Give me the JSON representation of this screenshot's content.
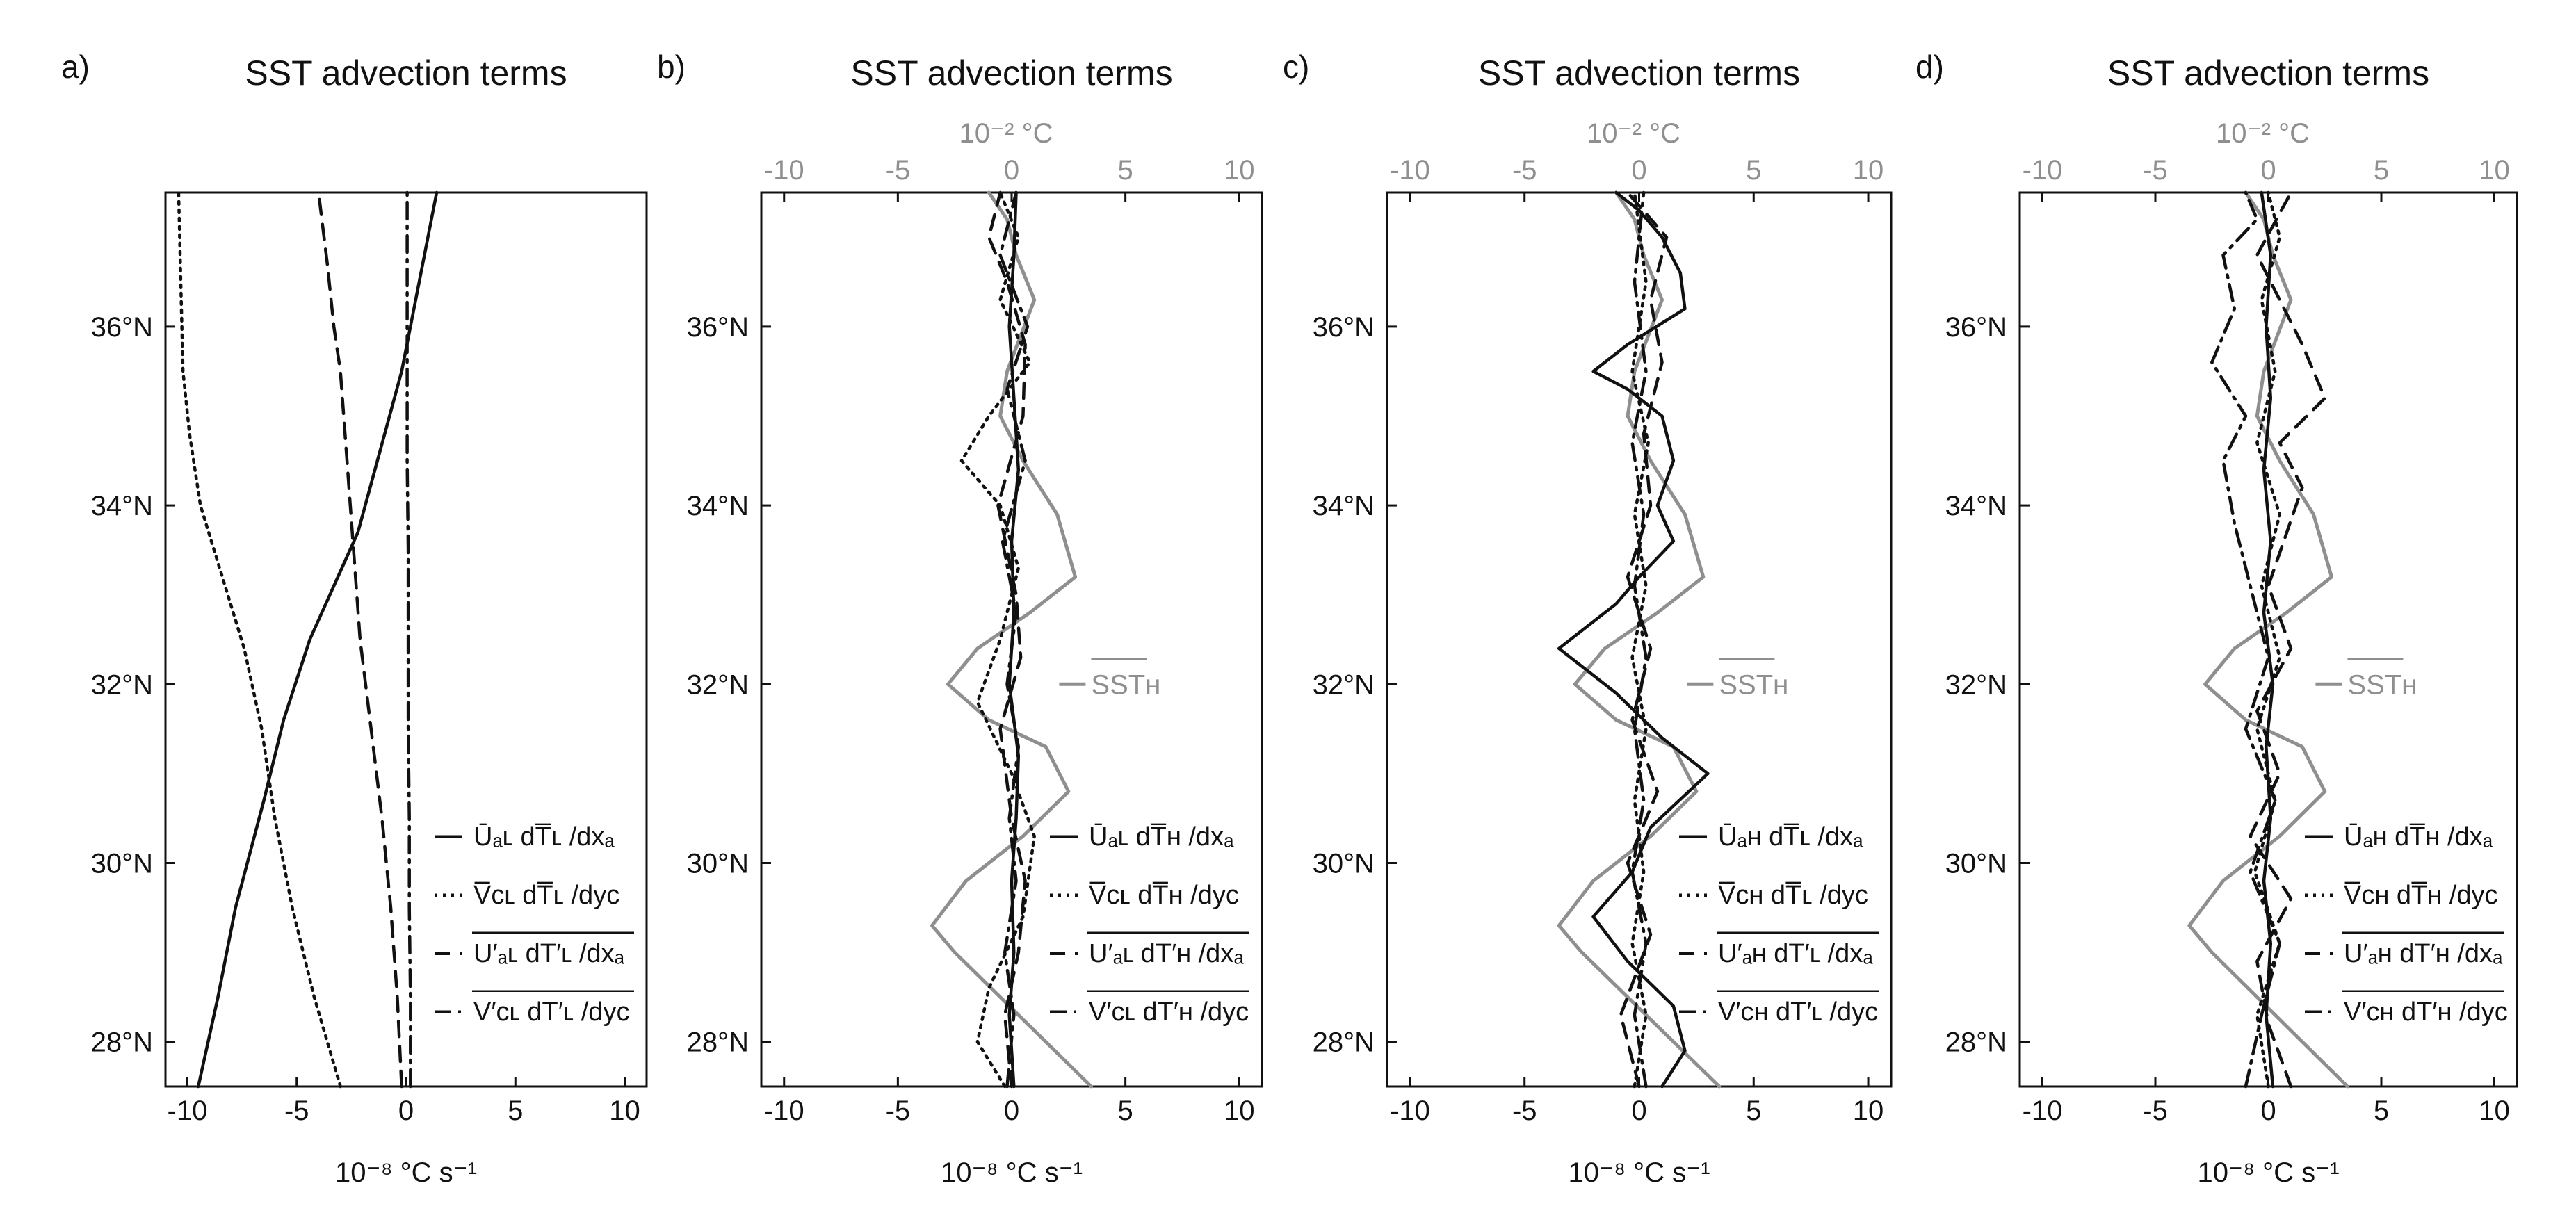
{
  "colors": {
    "black": "#111111",
    "gray": "#8f8f8f"
  },
  "panels": [
    {
      "id": "a",
      "label": "a)",
      "title": "SST advection terms",
      "xlabel": "10⁻⁸ °C s⁻¹",
      "bottom_ticks": [
        "-10",
        "-5",
        "0",
        "5",
        "10"
      ],
      "top_axis": false,
      "top_axis_label": "",
      "top_ticks": [],
      "y_ticks": [
        "36°N",
        "34°N",
        "32°N",
        "30°N",
        "28°N"
      ],
      "sst_label": "",
      "legend": [
        {
          "style": "solid",
          "text": "Ūₐʟ dT̅ʟ /dxₐ"
        },
        {
          "style": "dotted",
          "text": "V̅ᴄʟ dT̅ʟ /dyᴄ"
        },
        {
          "style": "dashed",
          "text": "U′ₐʟ dT′ʟ /dxₐ"
        },
        {
          "style": "dashdot",
          "text": "V′ᴄʟ dT′ʟ /dyᴄ"
        }
      ]
    },
    {
      "id": "b",
      "label": "b)",
      "title": "SST advection terms",
      "xlabel": "10⁻⁸ °C s⁻¹",
      "bottom_ticks": [
        "-10",
        "-5",
        "0",
        "5",
        "10"
      ],
      "top_axis": true,
      "top_axis_label": "10⁻² °C",
      "top_ticks": [
        "-10",
        "-5",
        "0",
        "5",
        "10"
      ],
      "y_ticks": [
        "36°N",
        "34°N",
        "32°N",
        "30°N",
        "28°N"
      ],
      "sst_label": "SSTʜ",
      "legend": [
        {
          "style": "solid",
          "text": "Ūₐʟ dT̅ʜ /dxₐ"
        },
        {
          "style": "dotted",
          "text": "V̅ᴄʟ dT̅ʜ /dyᴄ"
        },
        {
          "style": "dashed",
          "text": "U′ₐʟ dT′ʜ /dxₐ"
        },
        {
          "style": "dashdot",
          "text": "V′ᴄʟ dT′ʜ /dyᴄ"
        }
      ]
    },
    {
      "id": "c",
      "label": "c)",
      "title": "SST advection terms",
      "xlabel": "10⁻⁸ °C s⁻¹",
      "bottom_ticks": [
        "-10",
        "-5",
        "0",
        "5",
        "10"
      ],
      "top_axis": true,
      "top_axis_label": "10⁻² °C",
      "top_ticks": [
        "-10",
        "-5",
        "0",
        "5",
        "10"
      ],
      "y_ticks": [
        "36°N",
        "34°N",
        "32°N",
        "30°N",
        "28°N"
      ],
      "sst_label": "SSTʜ",
      "legend": [
        {
          "style": "solid",
          "text": "Ūₐʜ dT̅ʟ /dxₐ"
        },
        {
          "style": "dotted",
          "text": "V̅ᴄʜ dT̅ʟ /dyᴄ"
        },
        {
          "style": "dashed",
          "text": "U′ₐʜ dT′ʟ /dxₐ"
        },
        {
          "style": "dashdot",
          "text": "V′ᴄʜ dT′ʟ /dyᴄ"
        }
      ]
    },
    {
      "id": "d",
      "label": "d)",
      "title": "SST advection terms",
      "xlabel": "10⁻⁸ °C s⁻¹",
      "bottom_ticks": [
        "-10",
        "-5",
        "0",
        "5",
        "10"
      ],
      "top_axis": true,
      "top_axis_label": "10⁻² °C",
      "top_ticks": [
        "-10",
        "-5",
        "0",
        "5",
        "10"
      ],
      "y_ticks": [
        "36°N",
        "34°N",
        "32°N",
        "30°N",
        "28°N"
      ],
      "sst_label": "SSTʜ",
      "legend": [
        {
          "style": "solid",
          "text": "Ūₐʜ dT̅ʜ /dxₐ"
        },
        {
          "style": "dotted",
          "text": "V̅ᴄʜ dT̅ʜ /dyᴄ"
        },
        {
          "style": "dashed",
          "text": "U′ₐʜ dT′ʜ /dxₐ"
        },
        {
          "style": "dashdot",
          "text": "V′ᴄʜ dT′ʜ /dyᴄ"
        }
      ]
    }
  ],
  "chart_data": [
    {
      "panel": "a",
      "type": "line",
      "title": "SST advection terms",
      "xlabel": "10⁻⁸ °C s⁻¹",
      "xlim": [
        -11,
        11
      ],
      "ylim": [
        27.5,
        37.5
      ],
      "series": [
        {
          "name": "solid",
          "style": "solid",
          "color": "black",
          "x": [
            -9.5,
            -8.6,
            -7.8,
            -6.5,
            -5.6,
            -4.4,
            -3.3,
            -2.2,
            -1.2,
            -0.2,
            0.6,
            1.4
          ],
          "y": [
            27.5,
            28.5,
            29.5,
            30.7,
            31.6,
            32.5,
            33.1,
            33.7,
            34.6,
            35.5,
            36.5,
            37.5
          ]
        },
        {
          "name": "dotted",
          "style": "dotted",
          "color": "black",
          "x": [
            -3.0,
            -4.2,
            -5.2,
            -6.0,
            -6.6,
            -7.4,
            -8.4,
            -9.4,
            -9.9,
            -10.2,
            -10.3,
            -10.4
          ],
          "y": [
            27.5,
            28.5,
            29.5,
            30.5,
            31.5,
            32.4,
            33.2,
            34.0,
            34.8,
            35.5,
            36.5,
            37.5
          ]
        },
        {
          "name": "dashed",
          "style": "dashed",
          "color": "black",
          "x": [
            -0.2,
            -0.4,
            -0.7,
            -1.1,
            -1.6,
            -2.1,
            -2.4,
            -2.7,
            -3.0,
            -3.3,
            -3.6,
            -4.0
          ],
          "y": [
            27.5,
            28.5,
            29.5,
            30.5,
            31.5,
            32.5,
            33.5,
            34.5,
            35.5,
            36.0,
            36.7,
            37.5
          ]
        },
        {
          "name": "dashdot",
          "style": "dashdot",
          "color": "black",
          "x": [
            0.2,
            0.2,
            0.15,
            0.15,
            0.1,
            0.1,
            0.1,
            0.05,
            0.05,
            0.05
          ],
          "y": [
            27.5,
            28.5,
            29.5,
            30.5,
            31.5,
            32.5,
            33.5,
            34.5,
            35.5,
            37.5
          ]
        }
      ]
    },
    {
      "panel": "b",
      "type": "line",
      "title": "SST advection terms",
      "xlabel": "10⁻⁸ °C s⁻¹",
      "top_xlabel": "10⁻² °C",
      "xlim": [
        -11,
        11
      ],
      "ylim": [
        27.5,
        37.5
      ],
      "series": [
        {
          "name": "SST_H",
          "style": "solid",
          "color": "gray",
          "x": [
            3.5,
            1.5,
            -0.5,
            -2.5,
            -3.5,
            -2.0,
            0.5,
            2.5,
            1.5,
            -1.0,
            -2.8,
            -1.5,
            0.8,
            2.8,
            2.0,
            0.5,
            -0.5,
            -0.2,
            1.0,
            0.2,
            -0.2,
            -1.0
          ],
          "y": [
            27.5,
            28.0,
            28.5,
            29.0,
            29.3,
            29.8,
            30.3,
            30.8,
            31.3,
            31.6,
            32.0,
            32.4,
            32.8,
            33.2,
            33.9,
            34.5,
            35.0,
            35.5,
            36.3,
            36.8,
            37.2,
            37.5
          ]
        },
        {
          "name": "solid",
          "style": "solid",
          "color": "black",
          "x": [
            0.1,
            -0.1,
            0.1,
            0.0,
            0.2,
            0.3,
            -0.1,
            0.1,
            0.0,
            0.3,
            0.1,
            -0.1,
            0.1,
            0.2
          ],
          "y": [
            27.5,
            28.3,
            29.0,
            29.8,
            30.5,
            31.2,
            32.0,
            32.8,
            33.6,
            34.4,
            35.2,
            36.0,
            36.8,
            37.5
          ]
        },
        {
          "name": "dotted",
          "style": "dotted",
          "color": "black",
          "x": [
            -0.3,
            -1.5,
            -1.0,
            0.5,
            1.0,
            0.0,
            -1.5,
            -0.5,
            0.3,
            -0.5,
            -2.2,
            -1.0,
            0.8,
            -0.5,
            0.3,
            -0.5
          ],
          "y": [
            27.5,
            28.0,
            28.6,
            29.4,
            30.3,
            31.0,
            31.8,
            32.5,
            33.3,
            34.0,
            34.5,
            35.0,
            35.6,
            36.3,
            37.0,
            37.5
          ]
        },
        {
          "name": "dashed",
          "style": "dashed",
          "color": "black",
          "x": [
            0.0,
            -0.3,
            0.3,
            0.6,
            0.0,
            -0.5,
            0.4,
            0.2,
            -0.6,
            0.5,
            0.6,
            -0.2,
            -1.0,
            -0.5
          ],
          "y": [
            27.5,
            28.3,
            29.0,
            29.8,
            30.5,
            31.5,
            32.3,
            33.0,
            34.0,
            35.0,
            35.8,
            36.5,
            37.0,
            37.5
          ]
        },
        {
          "name": "dashdot",
          "style": "dashdot",
          "color": "black",
          "x": [
            -0.2,
            0.1,
            -0.3,
            0.2,
            -0.1,
            0.3,
            -0.2,
            0.2,
            -0.4,
            0.6,
            -0.2,
            0.7,
            -0.5,
            0.2
          ],
          "y": [
            27.5,
            28.3,
            29.0,
            29.8,
            30.5,
            31.3,
            32.0,
            32.8,
            33.6,
            34.5,
            35.3,
            36.0,
            36.8,
            37.5
          ]
        }
      ]
    },
    {
      "panel": "c",
      "type": "line",
      "title": "SST advection terms",
      "xlabel": "10⁻⁸ °C s⁻¹",
      "top_xlabel": "10⁻² °C",
      "xlim": [
        -11,
        11
      ],
      "ylim": [
        27.5,
        37.5
      ],
      "series": [
        {
          "name": "SST_H",
          "style": "solid",
          "color": "gray",
          "x": [
            3.5,
            1.5,
            -0.5,
            -2.5,
            -3.5,
            -2.0,
            0.5,
            2.5,
            1.5,
            -1.0,
            -2.8,
            -1.5,
            0.8,
            2.8,
            2.0,
            0.5,
            -0.5,
            -0.2,
            1.0,
            0.2,
            -0.2,
            -1.0
          ],
          "y": [
            27.5,
            28.0,
            28.5,
            29.0,
            29.3,
            29.8,
            30.3,
            30.8,
            31.3,
            31.6,
            32.0,
            32.4,
            32.8,
            33.2,
            33.9,
            34.5,
            35.0,
            35.5,
            36.3,
            36.8,
            37.2,
            37.5
          ]
        },
        {
          "name": "solid",
          "style": "solid",
          "color": "black",
          "x": [
            1.0,
            2.0,
            1.5,
            -0.5,
            -2.0,
            -0.3,
            0.5,
            3.0,
            1.0,
            -1.0,
            -3.5,
            -1.0,
            0.0,
            1.5,
            0.8,
            1.5,
            1.0,
            -0.5,
            -2.0,
            -0.5,
            2.0,
            1.8,
            1.0,
            0.0,
            -1.0
          ],
          "y": [
            27.5,
            27.9,
            28.4,
            28.9,
            29.4,
            29.9,
            30.4,
            31.0,
            31.4,
            31.9,
            32.4,
            32.9,
            33.2,
            33.6,
            34.0,
            34.5,
            35.0,
            35.3,
            35.5,
            35.8,
            36.2,
            36.6,
            37.0,
            37.3,
            37.5
          ]
        },
        {
          "name": "dotted",
          "style": "dotted",
          "color": "black",
          "x": [
            -0.2,
            0.3,
            -0.3,
            0.2,
            -0.2,
            0.3,
            -0.3,
            0.3,
            -0.2,
            0.4,
            -0.3,
            0.3,
            -0.2
          ],
          "y": [
            27.5,
            28.3,
            29.1,
            29.9,
            30.7,
            31.5,
            32.3,
            33.1,
            33.9,
            34.7,
            35.5,
            36.5,
            37.5
          ]
        },
        {
          "name": "dashed",
          "style": "dashed",
          "color": "black",
          "x": [
            0.0,
            -0.8,
            0.5,
            -0.5,
            0.8,
            -0.3,
            0.5,
            -0.5,
            0.5,
            0.2,
            1.0,
            0.5,
            1.2,
            -0.5
          ],
          "y": [
            27.5,
            28.3,
            29.2,
            30.0,
            30.8,
            31.6,
            32.4,
            33.2,
            34.0,
            34.8,
            35.6,
            36.3,
            37.0,
            37.5
          ]
        },
        {
          "name": "dashdot",
          "style": "dashdot",
          "color": "black",
          "x": [
            0.3,
            -0.2,
            0.3,
            -0.3,
            0.2,
            -0.2,
            0.3,
            -0.2,
            0.2,
            -0.3,
            0.3,
            -0.2,
            0.2
          ],
          "y": [
            27.5,
            28.3,
            29.1,
            29.9,
            30.7,
            31.5,
            32.3,
            33.1,
            33.9,
            34.7,
            35.5,
            36.5,
            37.5
          ]
        }
      ]
    },
    {
      "panel": "d",
      "type": "line",
      "title": "SST advection terms",
      "xlabel": "10⁻⁸ °C s⁻¹",
      "top_xlabel": "10⁻² °C",
      "xlim": [
        -11,
        11
      ],
      "ylim": [
        27.5,
        37.5
      ],
      "series": [
        {
          "name": "SST_H",
          "style": "solid",
          "color": "gray",
          "x": [
            3.5,
            1.5,
            -0.5,
            -2.5,
            -3.5,
            -2.0,
            0.5,
            2.5,
            1.5,
            -1.0,
            -2.8,
            -1.5,
            0.8,
            2.8,
            2.0,
            0.5,
            -0.5,
            -0.2,
            1.0,
            0.2,
            -0.2,
            -1.0
          ],
          "y": [
            27.5,
            28.0,
            28.5,
            29.0,
            29.3,
            29.8,
            30.3,
            30.8,
            31.3,
            31.6,
            32.0,
            32.4,
            32.8,
            33.2,
            33.9,
            34.5,
            35.0,
            35.5,
            36.3,
            36.8,
            37.2,
            37.5
          ]
        },
        {
          "name": "solid",
          "style": "solid",
          "color": "black",
          "x": [
            0.2,
            -0.1,
            0.1,
            -0.2,
            0.1,
            -0.1,
            0.2,
            -0.2,
            0.1,
            -0.2,
            0.1,
            -0.1,
            0.1,
            -0.3
          ],
          "y": [
            27.5,
            28.3,
            29.1,
            29.8,
            30.5,
            31.3,
            32.0,
            32.8,
            33.6,
            34.4,
            35.2,
            36.0,
            36.8,
            37.5
          ]
        },
        {
          "name": "dotted",
          "style": "dotted",
          "color": "black",
          "x": [
            0.0,
            -0.5,
            0.5,
            -0.6,
            0.3,
            -0.5,
            0.5,
            -0.3,
            0.5,
            -0.5,
            0.3,
            -0.3,
            0.5,
            0.0
          ],
          "y": [
            27.5,
            28.3,
            29.1,
            29.9,
            30.7,
            31.5,
            32.3,
            33.1,
            33.9,
            34.7,
            35.5,
            36.3,
            37.0,
            37.5
          ]
        },
        {
          "name": "dashed",
          "style": "dashed",
          "color": "black",
          "x": [
            1.0,
            0.0,
            -0.5,
            1.0,
            -0.8,
            0.5,
            -0.5,
            1.0,
            0.0,
            1.5,
            0.5,
            2.5,
            1.5,
            -0.5,
            1.0
          ],
          "y": [
            27.5,
            28.2,
            28.9,
            29.6,
            30.3,
            31.0,
            31.7,
            32.4,
            33.1,
            34.2,
            34.7,
            35.2,
            35.8,
            36.8,
            37.5
          ]
        },
        {
          "name": "dashdot",
          "style": "dashdot",
          "color": "black",
          "x": [
            -1.0,
            -0.3,
            0.5,
            -0.8,
            0.3,
            -1.0,
            0.0,
            -0.8,
            -1.5,
            -2.0,
            -1.0,
            -2.5,
            -1.5,
            -2.0,
            -0.5,
            -1.0
          ],
          "y": [
            27.5,
            28.3,
            29.1,
            29.9,
            30.7,
            31.5,
            32.3,
            33.1,
            33.8,
            34.5,
            35.0,
            35.6,
            36.2,
            36.8,
            37.2,
            37.5
          ]
        }
      ]
    }
  ]
}
